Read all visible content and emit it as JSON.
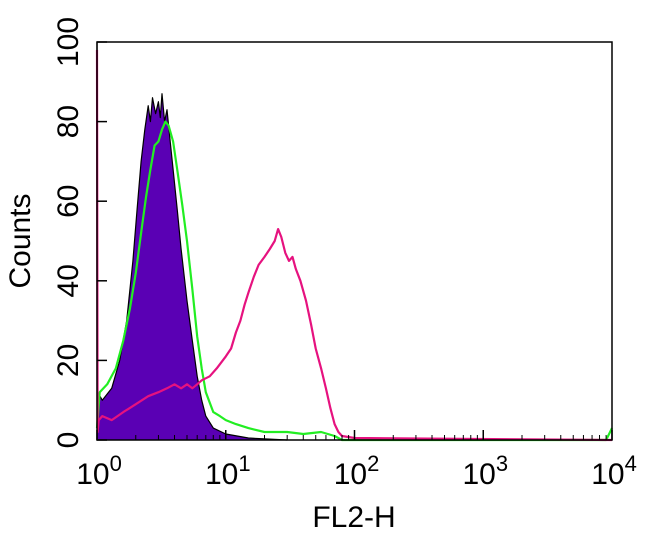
{
  "chart_data": {
    "type": "area",
    "xlabel": "FL2-H",
    "ylabel": "Counts",
    "x_scale": "log",
    "xlim": [
      1,
      10000
    ],
    "ylim": [
      0,
      100
    ],
    "x_ticks": [
      {
        "value": 1,
        "base": "10",
        "exp": "0"
      },
      {
        "value": 10,
        "base": "10",
        "exp": "1"
      },
      {
        "value": 100,
        "base": "10",
        "exp": "2"
      },
      {
        "value": 1000,
        "base": "10",
        "exp": "3"
      },
      {
        "value": 10000,
        "base": "10",
        "exp": "4"
      }
    ],
    "y_ticks": [
      0,
      20,
      40,
      60,
      80,
      100
    ],
    "grid": false,
    "series": [
      {
        "fill": "#5a00b4",
        "line": "#000000",
        "filled": true,
        "points": [
          [
            1.0,
            100
          ],
          [
            1.01,
            12
          ],
          [
            1.1,
            10
          ],
          [
            1.3,
            13
          ],
          [
            1.5,
            20
          ],
          [
            1.7,
            30
          ],
          [
            1.9,
            45
          ],
          [
            2.05,
            58
          ],
          [
            2.2,
            70
          ],
          [
            2.35,
            78
          ],
          [
            2.5,
            84
          ],
          [
            2.6,
            80
          ],
          [
            2.7,
            86
          ],
          [
            2.85,
            82
          ],
          [
            3.0,
            85
          ],
          [
            3.1,
            81
          ],
          [
            3.2,
            87
          ],
          [
            3.35,
            80
          ],
          [
            3.5,
            83
          ],
          [
            3.7,
            75
          ],
          [
            3.9,
            68
          ],
          [
            4.2,
            58
          ],
          [
            4.5,
            48
          ],
          [
            5.0,
            35
          ],
          [
            5.5,
            25
          ],
          [
            6.0,
            16
          ],
          [
            6.5,
            10
          ],
          [
            7.0,
            6
          ],
          [
            8.0,
            3
          ],
          [
            10,
            1.5
          ],
          [
            15,
            0.5
          ],
          [
            30,
            0
          ]
        ]
      },
      {
        "fill": "",
        "line": "#22ee22",
        "filled": false,
        "points": [
          [
            1.0,
            3
          ],
          [
            1.05,
            12
          ],
          [
            1.2,
            14
          ],
          [
            1.4,
            18
          ],
          [
            1.6,
            25
          ],
          [
            1.8,
            33
          ],
          [
            2.0,
            42
          ],
          [
            2.2,
            52
          ],
          [
            2.4,
            61
          ],
          [
            2.6,
            68
          ],
          [
            2.8,
            74
          ],
          [
            3.0,
            75
          ],
          [
            3.2,
            78
          ],
          [
            3.4,
            80
          ],
          [
            3.6,
            79
          ],
          [
            3.9,
            75
          ],
          [
            4.2,
            68
          ],
          [
            4.6,
            59
          ],
          [
            5.0,
            50
          ],
          [
            5.5,
            38
          ],
          [
            6.0,
            26
          ],
          [
            6.5,
            18
          ],
          [
            7.0,
            12
          ],
          [
            8.0,
            7
          ],
          [
            9.0,
            6
          ],
          [
            10,
            5
          ],
          [
            12,
            4
          ],
          [
            15,
            3
          ],
          [
            20,
            2
          ],
          [
            30,
            2
          ],
          [
            40,
            1.5
          ],
          [
            55,
            2
          ],
          [
            70,
            1
          ],
          [
            80,
            0
          ],
          [
            9000,
            0
          ],
          [
            10000,
            3
          ]
        ]
      },
      {
        "fill": "",
        "line": "#e6127f",
        "filled": false,
        "points": [
          [
            1.0,
            98
          ],
          [
            1.01,
            2
          ],
          [
            1.03,
            5
          ],
          [
            1.1,
            6
          ],
          [
            1.3,
            5
          ],
          [
            1.6,
            7
          ],
          [
            2.0,
            9
          ],
          [
            2.5,
            11
          ],
          [
            3.0,
            12
          ],
          [
            3.5,
            13
          ],
          [
            4.0,
            14
          ],
          [
            4.5,
            13
          ],
          [
            5.0,
            14
          ],
          [
            5.5,
            13
          ],
          [
            6.0,
            14
          ],
          [
            6.5,
            15
          ],
          [
            7.5,
            16
          ],
          [
            8.5,
            18
          ],
          [
            10,
            21
          ],
          [
            11,
            23
          ],
          [
            12,
            27
          ],
          [
            13,
            30
          ],
          [
            14,
            34
          ],
          [
            15,
            37
          ],
          [
            16.5,
            41
          ],
          [
            18,
            44
          ],
          [
            20,
            46
          ],
          [
            22,
            48
          ],
          [
            24,
            50
          ],
          [
            25.5,
            53
          ],
          [
            27,
            51
          ],
          [
            29,
            47
          ],
          [
            31,
            45
          ],
          [
            33,
            46
          ],
          [
            35,
            43
          ],
          [
            38,
            40
          ],
          [
            42,
            35
          ],
          [
            46,
            29
          ],
          [
            50,
            23
          ],
          [
            55,
            18
          ],
          [
            60,
            13
          ],
          [
            65,
            8
          ],
          [
            70,
            4
          ],
          [
            75,
            2
          ],
          [
            80,
            1
          ],
          [
            100,
            0.5
          ],
          [
            10000,
            0
          ]
        ]
      }
    ]
  }
}
